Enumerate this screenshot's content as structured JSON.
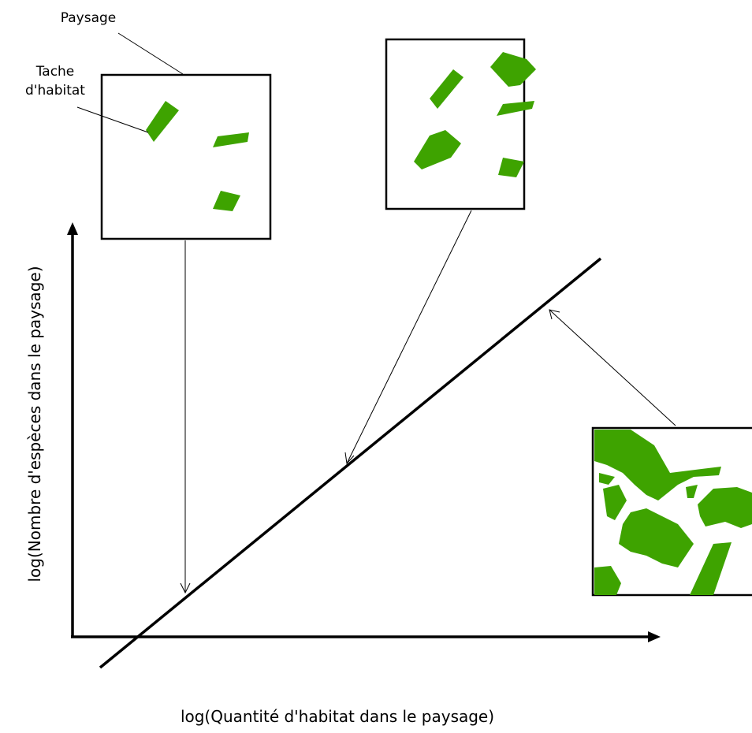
{
  "labels": {
    "landscape": "Paysage",
    "patch_lines": [
      "Tache",
      "d'habitat"
    ]
  },
  "axes": {
    "x_label": "log(Quantité d'habitat dans le paysage)",
    "y_label": "log(Nombre d'espèces dans le paysage)"
  }
}
